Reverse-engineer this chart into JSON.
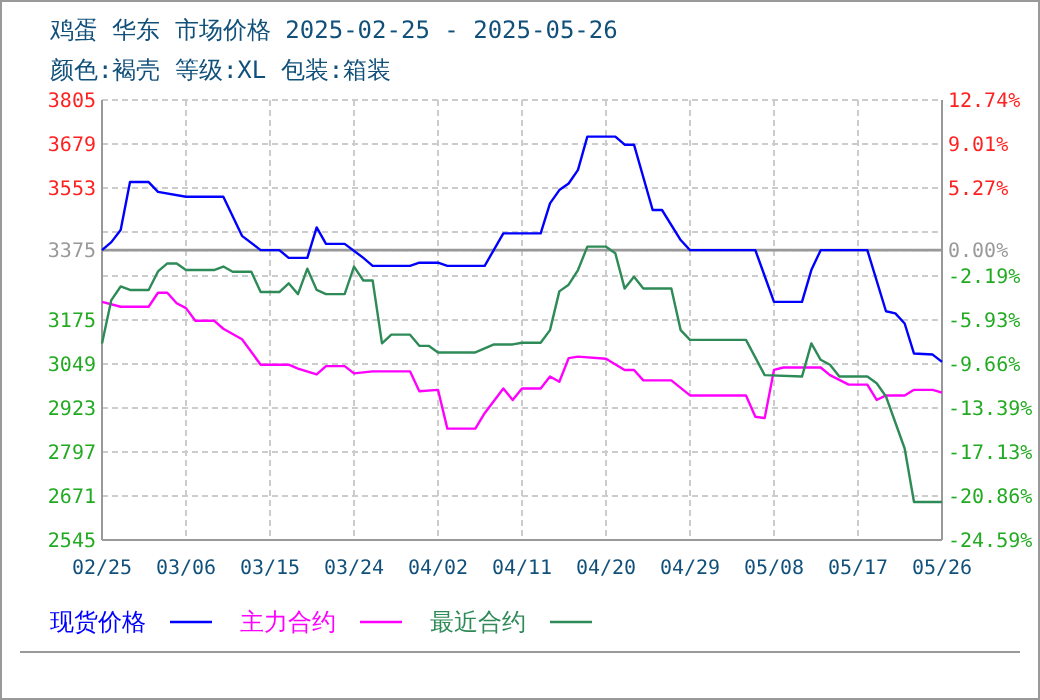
{
  "chart_data": {
    "type": "line",
    "title": "鸡蛋 华东 市场价格 2025-02-25 - 2025-05-26",
    "subtitle": "颜色:褐壳 等级:XL 包装:箱装",
    "xlim": [
      "--02-25",
      "--05-26"
    ],
    "xticks": [
      {
        "value": "--02-25",
        "label": "02/25"
      },
      {
        "value": "--03-06",
        "label": "03/06"
      },
      {
        "value": "--03-15",
        "label": "03/15"
      },
      {
        "value": "--03-24",
        "label": "03/24"
      },
      {
        "value": "--04-02",
        "label": "04/02"
      },
      {
        "value": "--04-11",
        "label": "04/11"
      },
      {
        "value": "--04-20",
        "label": "04/20"
      },
      {
        "value": "--04-29",
        "label": "04/29"
      },
      {
        "value": "--05-08",
        "label": "05/08"
      },
      {
        "value": "--05-17",
        "label": "05/17"
      },
      {
        "value": "--05-26",
        "label": "05/26"
      }
    ],
    "ylim": [
      2545,
      3805
    ],
    "yticks": [
      3805,
      3679,
      3553,
      {
        "value": 3427,
        "label": null
      },
      3375,
      {
        "value": 3301,
        "label": null
      },
      3175,
      3049,
      2923,
      2797,
      2671,
      2545
    ],
    "y2lim": [
      -24.59,
      12.74
    ],
    "y2ticks": [
      {
        "value": 12.74,
        "label": "12.74%"
      },
      {
        "value": 9.01,
        "label": "9.01%"
      },
      {
        "value": 5.27,
        "label": "5.27%"
      },
      {
        "value": 0,
        "label": "0.00%"
      },
      {
        "value": -2.19,
        "label": "-2.19%"
      },
      {
        "value": -5.93,
        "label": "-5.93%"
      },
      {
        "value": -9.66,
        "label": "-9.66%"
      },
      {
        "value": -13.39,
        "label": "-13.39%"
      },
      {
        "value": -17.13,
        "label": "-17.13%"
      },
      {
        "value": -20.86,
        "label": "-20.86%"
      },
      {
        "value": -24.59,
        "label": "-24.59%"
      }
    ],
    "ref_lines": [
      {
        "axis": "y",
        "value": 3375,
        "color": "#999999",
        "line_style": "solid"
      }
    ],
    "grid": true,
    "legend": "bottom",
    "marker": "none",
    "line_style": "solid",
    "series": [
      {
        "name": "现货价格",
        "color": "#0000ff",
        "x": [
          "--02-25",
          "--02-26",
          "--02-27",
          "--02-28",
          "--03-02",
          "--03-03",
          "--03-06",
          "--03-10",
          "--03-12",
          "--03-14",
          "--03-16",
          "--03-17",
          "--03-19",
          "--03-20",
          "--03-21",
          "--03-23",
          "--03-25",
          "--03-26",
          "--03-30",
          "--03-31",
          "--04-02",
          "--04-03",
          "--04-07",
          "--04-09",
          "--04-13",
          "--04-14",
          "--04-15",
          "--04-16",
          "--04-17",
          "--04-18",
          "--04-21",
          "--04-22",
          "--04-23",
          "--04-25",
          "--04-26",
          "--04-28",
          "--04-29",
          "--05-06",
          "--05-08",
          "--05-11",
          "--05-12",
          "--05-13",
          "--05-18",
          "--05-20",
          "--05-21",
          "--05-22",
          "--05-23",
          "--05-25",
          "--05-26"
        ],
        "values": [
          3375,
          3398,
          3433,
          3570,
          3570,
          3542,
          3528,
          3528,
          3416,
          3375,
          3375,
          3353,
          3353,
          3440,
          3393,
          3393,
          3353,
          3330,
          3330,
          3339,
          3339,
          3330,
          3330,
          3423,
          3423,
          3509,
          3547,
          3566,
          3605,
          3700,
          3700,
          3677,
          3677,
          3490,
          3490,
          3404,
          3375,
          3375,
          3227,
          3227,
          3318,
          3375,
          3375,
          3200,
          3194,
          3165,
          3079,
          3076,
          3055
        ]
      },
      {
        "name": "主力合约",
        "color": "#ff00ff",
        "x": [
          "--02-25",
          "--02-27",
          "--03-02",
          "--03-03",
          "--03-04",
          "--03-05",
          "--03-06",
          "--03-07",
          "--03-09",
          "--03-10",
          "--03-12",
          "--03-14",
          "--03-17",
          "--03-18",
          "--03-20",
          "--03-21",
          "--03-23",
          "--03-24",
          "--03-26",
          "--03-30",
          "--03-31",
          "--04-02",
          "--04-03",
          "--04-06",
          "--04-07",
          "--04-09",
          "--04-10",
          "--04-11",
          "--04-13",
          "--04-14",
          "--04-15",
          "--04-16",
          "--04-17",
          "--04-20",
          "--04-22",
          "--04-23",
          "--04-24",
          "--04-27",
          "--04-29",
          "--05-05",
          "--05-06",
          "--05-07",
          "--05-08",
          "--05-09",
          "--05-13",
          "--05-14",
          "--05-16",
          "--05-18",
          "--05-19",
          "--05-20",
          "--05-22",
          "--05-23",
          "--05-25",
          "--05-26"
        ],
        "values": [
          3227,
          3213,
          3213,
          3253,
          3253,
          3223,
          3209,
          3173,
          3173,
          3150,
          3120,
          3047,
          3047,
          3036,
          3019,
          3043,
          3043,
          3022,
          3028,
          3028,
          2971,
          2975,
          2864,
          2864,
          2908,
          2979,
          2946,
          2979,
          2979,
          3013,
          2998,
          3066,
          3070,
          3064,
          3032,
          3032,
          3002,
          3002,
          2959,
          2959,
          2898,
          2894,
          3032,
          3039,
          3039,
          3017,
          2990,
          2990,
          2946,
          2959,
          2959,
          2975,
          2975,
          2967
        ]
      },
      {
        "name": "最近合约",
        "color": "#2e8b57",
        "x": [
          "--02-25",
          "--02-26",
          "--02-27",
          "--02-28",
          "--03-02",
          "--03-03",
          "--03-04",
          "--03-05",
          "--03-06",
          "--03-09",
          "--03-10",
          "--03-11",
          "--03-13",
          "--03-14",
          "--03-16",
          "--03-17",
          "--03-18",
          "--03-19",
          "--03-20",
          "--03-21",
          "--03-23",
          "--03-24",
          "--03-25",
          "--03-26",
          "--03-27",
          "--03-28",
          "--03-30",
          "--03-31",
          "--04-01",
          "--04-02",
          "--04-06",
          "--04-08",
          "--04-10",
          "--04-11",
          "--04-13",
          "--04-14",
          "--04-15",
          "--04-16",
          "--04-17",
          "--04-18",
          "--04-20",
          "--04-21",
          "--04-22",
          "--04-23",
          "--04-24",
          "--04-27",
          "--04-28",
          "--04-29",
          "--05-05",
          "--05-07",
          "--05-11",
          "--05-12",
          "--05-13",
          "--05-14",
          "--05-15",
          "--05-18",
          "--05-19",
          "--05-20",
          "--05-22",
          "--05-23",
          "--05-26"
        ],
        "values": [
          3108,
          3232,
          3271,
          3261,
          3261,
          3314,
          3337,
          3337,
          3318,
          3318,
          3328,
          3313,
          3313,
          3255,
          3255,
          3280,
          3249,
          3322,
          3261,
          3249,
          3249,
          3328,
          3288,
          3288,
          3108,
          3133,
          3133,
          3101,
          3101,
          3082,
          3082,
          3105,
          3105,
          3110,
          3110,
          3146,
          3257,
          3276,
          3318,
          3385,
          3385,
          3366,
          3265,
          3299,
          3265,
          3265,
          3146,
          3118,
          3118,
          3017,
          3013,
          3108,
          3061,
          3047,
          3013,
          3013,
          2994,
          2956,
          2807,
          2654,
          2654
        ]
      }
    ]
  }
}
